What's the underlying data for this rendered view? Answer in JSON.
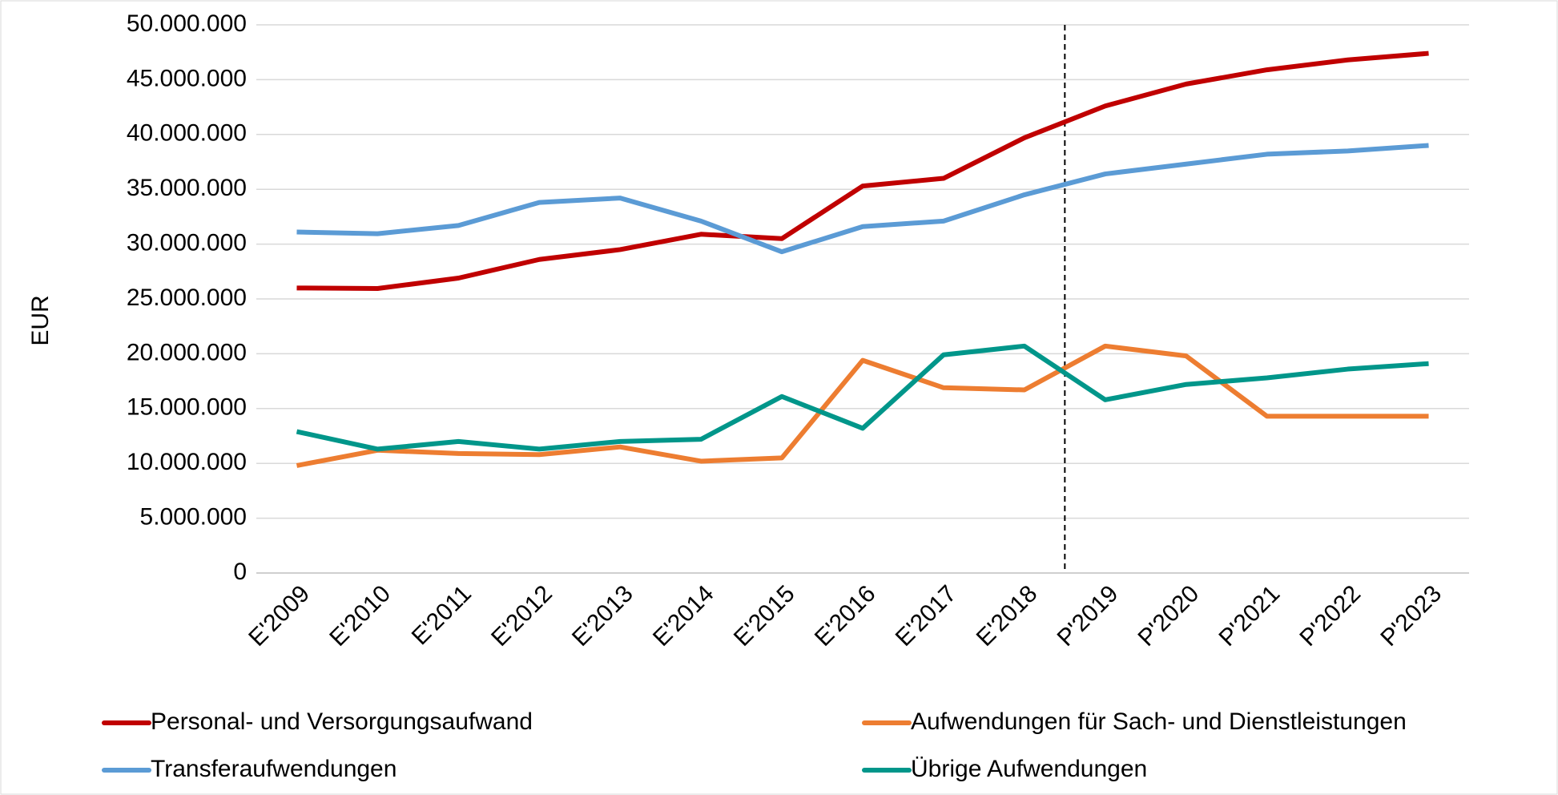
{
  "chart_data": {
    "type": "line",
    "y_label": "EUR",
    "categories": [
      "E'2009",
      "E'2010",
      "E'2011",
      "E'2012",
      "E'2013",
      "E'2014",
      "E'2015",
      "E'2016",
      "E'2017",
      "E'2018",
      "P'2019",
      "P'2020",
      "P'2021",
      "P'2022",
      "P'2023"
    ],
    "series": [
      {
        "name": "Personal- und Versorgungsaufwand",
        "color": "#c00000",
        "values": [
          26000000,
          25950000,
          26900000,
          28600000,
          29500000,
          30900000,
          30500000,
          35300000,
          36000000,
          39700000,
          42600000,
          44600000,
          45900000,
          46800000,
          47400000
        ]
      },
      {
        "name": "Aufwendungen für Sach- und Dienstleistungen",
        "color": "#ed7d31",
        "values": [
          9800000,
          11200000,
          10900000,
          10800000,
          11500000,
          10200000,
          10500000,
          19400000,
          16900000,
          16700000,
          20700000,
          19800000,
          14300000,
          14300000,
          14300000
        ]
      },
      {
        "name": "Transferaufwendungen",
        "color": "#5b9bd5",
        "values": [
          31100000,
          30950000,
          31700000,
          33800000,
          34200000,
          32100000,
          29300000,
          31600000,
          32100000,
          34500000,
          36400000,
          37300000,
          38200000,
          38500000,
          39000000
        ]
      },
      {
        "name": "Übrige Aufwendungen",
        "color": "#00968a",
        "values": [
          12900000,
          11300000,
          12000000,
          11300000,
          12000000,
          12200000,
          16100000,
          13200000,
          19900000,
          20700000,
          15800000,
          17200000,
          17800000,
          18600000,
          19100000
        ]
      }
    ],
    "ylim": [
      0,
      50000000
    ],
    "yticks": [
      0,
      {
        "value": 5000000,
        "label": "5.000.000"
      },
      {
        "value": 10000000,
        "label": "10.000.000"
      },
      {
        "value": 15000000,
        "label": "15.000.000"
      },
      {
        "value": 20000000,
        "label": "20.000.000"
      },
      {
        "value": 25000000,
        "label": "25.000.000"
      },
      {
        "value": 30000000,
        "label": "30.000.000"
      },
      {
        "value": 35000000,
        "label": "35.000.000"
      },
      {
        "value": 40000000,
        "label": "40.000.000"
      },
      {
        "value": 45000000,
        "label": "45.000.000"
      },
      {
        "value": 50000000,
        "label": "50.000.000"
      }
    ],
    "grid": true
  }
}
